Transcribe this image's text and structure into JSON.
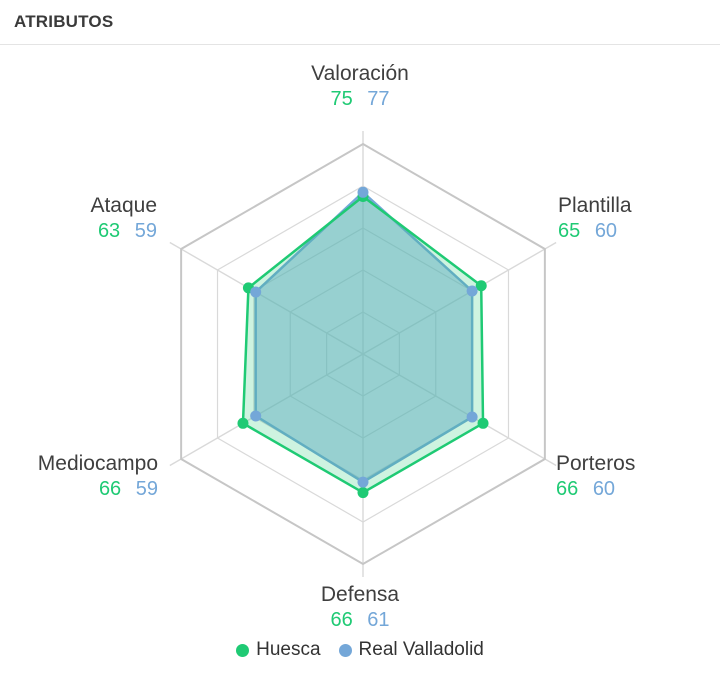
{
  "header": {
    "title": "ATRIBUTOS"
  },
  "chart_data": {
    "type": "radar",
    "title": "ATRIBUTOS",
    "categories": [
      "Valoración",
      "Plantilla",
      "Porteros",
      "Defensa",
      "Mediocampo",
      "Ataque"
    ],
    "series": [
      {
        "name": "Huesca",
        "color": "#1fca74",
        "fill": "rgba(31,202,116,0.22)",
        "values": [
          75,
          65,
          66,
          66,
          66,
          63
        ]
      },
      {
        "name": "Real Valladolid",
        "color": "#74a7d8",
        "fill": "rgba(116,167,216,0.50)",
        "values": [
          77,
          60,
          60,
          61,
          59,
          59
        ]
      }
    ],
    "rlim": [
      0,
      100
    ],
    "grid_rings": [
      20,
      40,
      60,
      80,
      100
    ],
    "grid_shape": "hexagon",
    "grid_color": "#d9d9d9",
    "outer_ring_color": "#c6c6c6",
    "legend_position": "bottom"
  }
}
